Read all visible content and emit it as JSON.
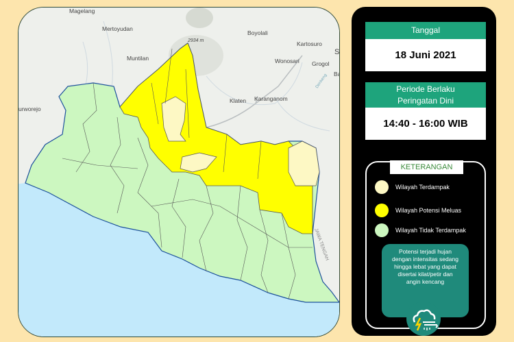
{
  "map": {
    "place_labels": [
      "Magelang",
      "Mertoyudan",
      "Boyolali",
      "Kartosuro",
      "2934 m",
      "Muntilan",
      "Wonosari",
      "Grogol",
      "S",
      "Ba",
      "Klaten",
      "Karanganom",
      "urworejo",
      "Denkeng",
      "JAWA TENGAH"
    ],
    "colors": {
      "terdampak": "#fdf8c4",
      "potensi_meluas": "#ffff00",
      "tidak_terdampak": "#ccf7c0",
      "sea": "#c2e9fb"
    }
  },
  "panel": {
    "date_header": "Tanggal",
    "date_value": "18 Juni 2021",
    "period_header_1": "Periode Berlaku",
    "period_header_2": "Peringatan Dini",
    "period_value": "14:40 - 16:00 WIB",
    "legend_title": "KETERANGAN",
    "legend": [
      {
        "label": "Wilayah Terdampak",
        "color": "#fdf8c4"
      },
      {
        "label": "Wilayah Potensi Meluas",
        "color": "#ffff00"
      },
      {
        "label": "Wilayah Tidak Terdampak",
        "color": "#ccf7c0"
      }
    ],
    "note_lines": [
      "Potensi terjadi hujan",
      "dengan intensitas sedang",
      "hingga lebat yang dapat",
      "disertai kilat/petir dan",
      "angin kencang"
    ],
    "icon": "thunderstorm-wind-icon"
  }
}
